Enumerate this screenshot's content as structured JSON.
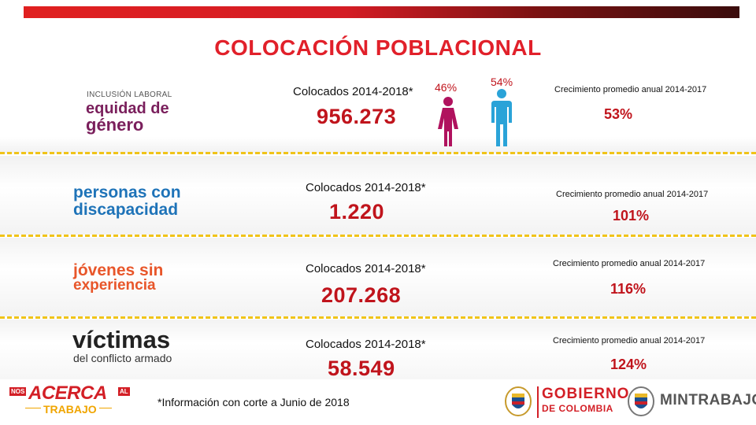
{
  "title": "COLOCACIÓN POBLACIONAL",
  "rows": [
    {
      "logo_line1": "INCLUSIÓN LABORAL",
      "logo_line2": "equidad de",
      "logo_line3": "género",
      "placed_label": "Colocados 2014-2018*",
      "placed_value": "956.273",
      "growth_label": "Crecimiento promedio anual 2014-2017",
      "growth_value": "53%",
      "female_pct": "46%",
      "male_pct": "54%"
    },
    {
      "logo_line1": "personas con",
      "logo_line2": "discapacidad",
      "placed_label": "Colocados 2014-2018*",
      "placed_value": "1.220",
      "growth_label": "Crecimiento promedio anual 2014-2017",
      "growth_value": "101%"
    },
    {
      "logo_line1": "jóvenes sin",
      "logo_line2": "experiencia",
      "placed_label": "Colocados 2014-2018*",
      "placed_value": "207.268",
      "growth_label": "Crecimiento promedio anual 2014-2017",
      "growth_value": "116%"
    },
    {
      "logo_line1": "víctimas",
      "logo_line2": "del conflicto armado",
      "placed_label": "Colocados 2014-2018*",
      "placed_value": "58.549",
      "growth_label": "Crecimiento promedio anual 2014-2017",
      "growth_value": "124%"
    }
  ],
  "footnote": "*Información con corte a Junio de 2018",
  "footer_logos": {
    "acerca_small": "NOS",
    "acerca_main": "ACERCA",
    "acerca_al": "AL",
    "acerca_trabajo": "TRABAJO",
    "gobierno_line1": "GOBIERNO",
    "gobierno_line2": "DE COLOMBIA",
    "mintrabajo": "MINTRABAJO"
  },
  "colors": {
    "accent_red": "#e1202a",
    "value_red": "#c0141c",
    "dash_yellow": "#f0c419",
    "female_magenta": "#b0125e",
    "male_blue": "#2aa3d8",
    "discapacidad_blue": "#1e73b8",
    "jovenes_orange": "#e8562a"
  },
  "icons": {
    "female": "female-figure-icon",
    "male": "male-figure-icon"
  }
}
